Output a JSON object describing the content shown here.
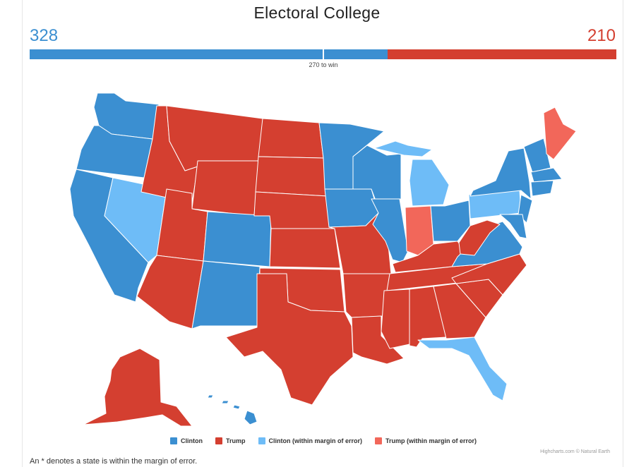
{
  "title": "Electoral College",
  "clinton_total": "328",
  "trump_total": "210",
  "win_threshold_label": "270 to win",
  "electoral": {
    "clinton": 328,
    "trump": 210,
    "total": 538,
    "threshold": 270
  },
  "colors": {
    "clinton": "#3b8fd1",
    "trump": "#d43f30",
    "clinton_margin": "#6ebcf7",
    "trump_margin": "#f2675a"
  },
  "legend": [
    {
      "label": "Clinton",
      "key": "clinton"
    },
    {
      "label": "Trump",
      "key": "trump"
    },
    {
      "label": "Clinton (within margin of error)",
      "key": "clinton_margin"
    },
    {
      "label": "Trump (within margin of error)",
      "key": "trump_margin"
    }
  ],
  "credits": "Highcharts.com © Natural Earth",
  "footnote": "An * denotes a state is within the margin of error."
}
